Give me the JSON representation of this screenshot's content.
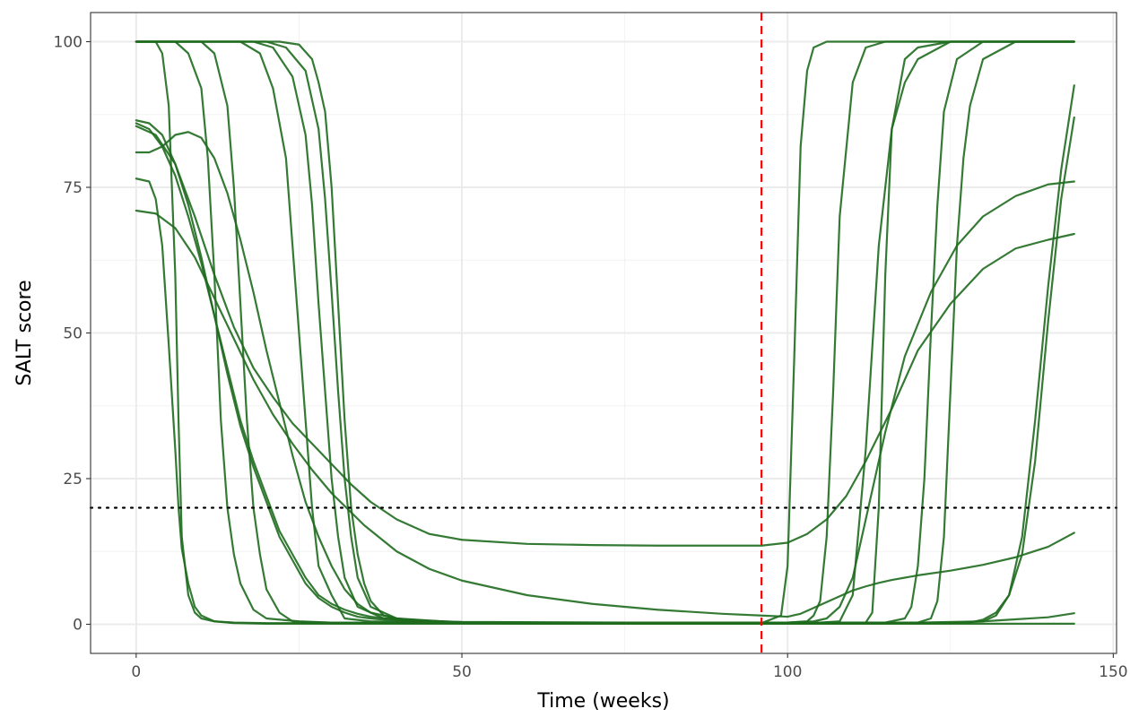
{
  "chart_data": {
    "type": "line",
    "title": "",
    "xlabel": "Time (weeks)",
    "ylabel": "SALT score",
    "xlim": [
      -7,
      150.5
    ],
    "ylim": [
      -5,
      105
    ],
    "xticks": [
      0,
      50,
      100,
      150
    ],
    "yticks": [
      0,
      25,
      50,
      75,
      100
    ],
    "x_tick_labels": [
      "0",
      "50",
      "100",
      "150"
    ],
    "y_tick_labels": [
      "0",
      "25",
      "50",
      "75",
      "100"
    ],
    "grid": true,
    "legend": "none",
    "line_color": "#1e6b1e",
    "reference_lines": [
      {
        "orientation": "vertical",
        "value": 96,
        "style": "dashed",
        "color": "#ff0000"
      },
      {
        "orientation": "horizontal",
        "value": 20,
        "style": "dotted",
        "color": "#000000"
      }
    ],
    "series": [
      {
        "x": [
          0,
          3,
          4,
          5,
          6,
          6.5,
          7,
          8,
          9,
          10,
          12,
          15,
          20,
          30,
          50,
          96,
          100,
          110,
          120,
          130,
          140,
          144
        ],
        "values": [
          100,
          100,
          98,
          89,
          60,
          35,
          15,
          5,
          2,
          1,
          0.5,
          0.3,
          0.2,
          0.2,
          0.2,
          0.2,
          0.2,
          0.2,
          0.3,
          0.5,
          1.2,
          1.9
        ]
      },
      {
        "x": [
          0,
          2,
          3,
          4,
          5,
          6,
          6.5,
          7,
          8,
          9,
          10,
          12,
          15,
          20,
          30,
          50,
          96,
          144
        ],
        "values": [
          76.5,
          76,
          73,
          65,
          48,
          30,
          20,
          13,
          7,
          3,
          1.5,
          0.5,
          0.2,
          0.1,
          0.1,
          0.1,
          0.1,
          0.1
        ]
      },
      {
        "x": [
          0,
          6,
          8,
          10,
          11,
          12,
          13,
          14,
          15,
          16,
          18,
          20,
          25,
          30,
          50,
          96,
          100,
          103,
          104,
          105,
          106,
          107,
          108,
          110,
          112,
          115,
          120,
          130,
          144
        ],
        "values": [
          100,
          100,
          98,
          92,
          80,
          60,
          35,
          20,
          12,
          7,
          2.5,
          1,
          0.5,
          0.3,
          0.3,
          0.3,
          0.3,
          0.5,
          1.5,
          4,
          15,
          40,
          70,
          93,
          99,
          100,
          100,
          100,
          100
        ]
      },
      {
        "x": [
          0,
          10,
          12,
          14,
          15,
          16,
          17,
          18,
          19,
          20,
          22,
          24,
          30,
          50,
          96,
          99,
          100,
          101,
          102,
          103,
          104,
          106,
          110,
          120,
          144
        ],
        "values": [
          100,
          100,
          98,
          89,
          75,
          55,
          35,
          20,
          12,
          6,
          2,
          0.5,
          0.2,
          0.2,
          0.2,
          1.5,
          10,
          45,
          82,
          95,
          99,
          100,
          100,
          100,
          100
        ]
      },
      {
        "x": [
          0,
          16,
          19,
          21,
          23,
          24,
          25,
          26,
          27,
          28,
          30,
          32,
          36,
          50,
          96,
          112,
          113,
          114,
          115,
          116,
          118,
          120,
          125,
          144
        ],
        "values": [
          100,
          100,
          98,
          92,
          80,
          65,
          50,
          35,
          20,
          10,
          5,
          1,
          0.5,
          0.3,
          0.3,
          0.3,
          2,
          20,
          60,
          85,
          97,
          99,
          100,
          100
        ]
      },
      {
        "x": [
          0,
          18,
          21,
          24,
          26,
          27,
          28,
          29,
          30,
          31,
          32,
          34,
          38,
          50,
          96,
          105,
          108,
          110,
          112,
          114,
          116,
          118,
          120,
          125,
          144
        ],
        "values": [
          100,
          100,
          99,
          94,
          84,
          72,
          55,
          40,
          25,
          15,
          8,
          3,
          1,
          0.3,
          0.3,
          0.3,
          0.5,
          5,
          30,
          65,
          85,
          93,
          97,
          100,
          100
        ]
      },
      {
        "x": [
          0,
          20,
          23,
          26,
          28,
          29,
          30,
          31,
          32,
          33,
          34,
          36,
          40,
          50,
          96,
          115,
          118,
          119,
          120,
          121,
          122,
          123,
          124,
          126,
          130,
          144
        ],
        "values": [
          100,
          100,
          99,
          95,
          85,
          73,
          57,
          40,
          25,
          15,
          8,
          3,
          1,
          0.3,
          0.3,
          0.3,
          1,
          3,
          10,
          25,
          50,
          72,
          88,
          97,
          100,
          100
        ]
      },
      {
        "x": [
          0,
          22,
          25,
          27,
          28,
          29,
          30,
          31,
          32,
          33,
          34,
          35,
          36,
          38,
          42,
          50,
          96,
          120,
          122,
          123,
          124,
          125,
          126,
          127,
          128,
          130,
          135,
          144
        ],
        "values": [
          100,
          100,
          99.5,
          97,
          93,
          88,
          75,
          55,
          35,
          20,
          12,
          7,
          4,
          1.5,
          0.5,
          0.3,
          0.3,
          0.3,
          1,
          4,
          15,
          40,
          65,
          80,
          89,
          97,
          100,
          100
        ]
      },
      {
        "x": [
          0,
          2,
          4,
          6,
          8,
          10,
          12,
          14,
          16,
          18,
          20,
          22,
          24,
          26,
          28,
          30,
          32,
          34,
          36,
          40,
          45,
          50,
          60,
          96,
          110,
          125,
          130,
          132,
          134,
          136,
          138,
          140,
          142,
          144
        ],
        "values": [
          86.5,
          86,
          84,
          79,
          72,
          63,
          53,
          43,
          34,
          27,
          21,
          15,
          11,
          7,
          4.5,
          3,
          2,
          1.3,
          1,
          0.6,
          0.3,
          0.2,
          0.1,
          0.1,
          0.1,
          0.2,
          0.5,
          1.5,
          5,
          15,
          35,
          58,
          78,
          92.5
        ]
      },
      {
        "x": [
          0,
          2,
          4,
          6,
          8,
          10,
          12,
          14,
          16,
          18,
          20,
          22,
          24,
          26,
          28,
          30,
          32,
          34,
          36,
          40,
          50,
          96,
          120,
          128,
          130,
          132,
          134,
          136,
          138,
          140,
          142,
          144
        ],
        "values": [
          86,
          85,
          82,
          77,
          70,
          62,
          53,
          44,
          35,
          28,
          22,
          16,
          12,
          8,
          5,
          3.5,
          2.5,
          1.8,
          1.3,
          0.8,
          0.4,
          0.2,
          0.2,
          0.3,
          0.8,
          2,
          5,
          12,
          28,
          52,
          73,
          87
        ]
      },
      {
        "x": [
          0,
          2,
          4,
          6,
          8,
          10,
          12,
          14,
          16,
          18,
          20,
          22,
          24,
          26,
          28,
          30,
          32,
          34,
          36,
          40,
          45,
          50,
          60,
          96,
          100,
          104,
          106,
          108,
          110,
          112,
          115,
          118,
          122,
          126,
          130,
          135,
          140,
          144
        ],
        "values": [
          81,
          81,
          82,
          84,
          84.5,
          83.5,
          80,
          74,
          66,
          57,
          47,
          38,
          29,
          21,
          15,
          10,
          6,
          3.5,
          2,
          1,
          0.5,
          0.3,
          0.3,
          0.3,
          0.3,
          0.5,
          1,
          3,
          8,
          18,
          33,
          46,
          57,
          65,
          70,
          73.5,
          75.5,
          76
        ]
      },
      {
        "x": [
          0,
          3,
          6,
          9,
          12,
          15,
          18,
          21,
          24,
          27,
          30,
          33,
          36,
          40,
          45,
          50,
          60,
          70,
          80,
          90,
          96,
          100,
          103,
          106,
          109,
          112,
          116,
          120,
          125,
          130,
          135,
          140,
          144
        ],
        "values": [
          85.5,
          84,
          79,
          70,
          60,
          51,
          44,
          39,
          34.5,
          31,
          27.5,
          24,
          21,
          18,
          15.5,
          14.5,
          13.8,
          13.6,
          13.5,
          13.5,
          13.5,
          14,
          15.5,
          18,
          22,
          28,
          37,
          47,
          55,
          61,
          64.5,
          66,
          67
        ]
      },
      {
        "x": [
          0,
          3,
          6,
          9,
          12,
          15,
          18,
          21,
          24,
          27,
          30,
          35,
          40,
          45,
          50,
          60,
          70,
          80,
          90,
          96,
          100,
          102,
          104,
          106,
          108,
          110,
          112,
          114,
          116,
          118,
          120,
          125,
          130,
          135,
          140,
          144
        ],
        "values": [
          71,
          70.5,
          68,
          63,
          56,
          49,
          42,
          36,
          31,
          26.5,
          22.5,
          17,
          12.5,
          9.5,
          7.5,
          5,
          3.5,
          2.5,
          1.8,
          1.5,
          1.3,
          1.8,
          2.8,
          3.8,
          4.8,
          5.8,
          6.5,
          7.1,
          7.6,
          8,
          8.4,
          9.2,
          10.2,
          11.5,
          13.3,
          15.7
        ]
      }
    ]
  }
}
